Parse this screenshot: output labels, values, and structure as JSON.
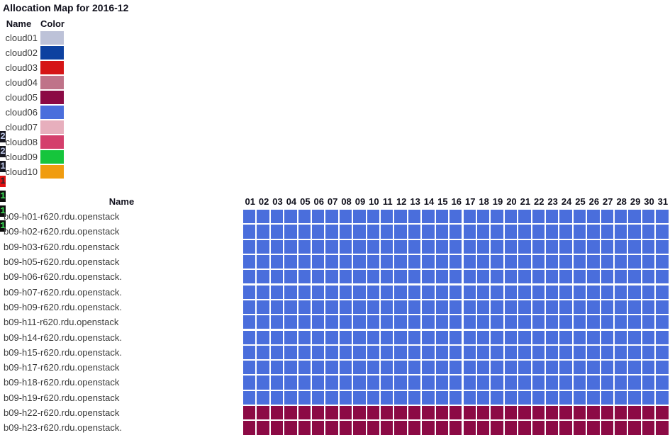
{
  "title": "Allocation Map for 2016-12",
  "legend": {
    "headers": {
      "name": "Name",
      "color": "Color"
    },
    "items": [
      {
        "name": "cloud01",
        "color": "#bdc2d8"
      },
      {
        "name": "cloud02",
        "color": "#0d41a0"
      },
      {
        "name": "cloud03",
        "color": "#d51516"
      },
      {
        "name": "cloud04",
        "color": "#bf7389"
      },
      {
        "name": "cloud05",
        "color": "#8c0a45"
      },
      {
        "name": "cloud06",
        "color": "#4a6edc"
      },
      {
        "name": "cloud07",
        "color": "#e7afbd"
      },
      {
        "name": "cloud08",
        "color": "#d43f6c"
      },
      {
        "name": "cloud09",
        "color": "#16c53c"
      },
      {
        "name": "cloud10",
        "color": "#f09c0f"
      }
    ]
  },
  "edge_artifact": {
    "digits": [
      {
        "text": "2",
        "fg": "#b9c4e4",
        "bg": "#15151f"
      },
      {
        "text": "2",
        "fg": "#b9c4e4",
        "bg": "#15151f"
      },
      {
        "text": "1",
        "fg": "#b9c4e4",
        "bg": "#15151f"
      },
      {
        "text": "1",
        "fg": "#25252f",
        "bg": "#e11010"
      },
      {
        "text": "1",
        "fg": "#3bdf55",
        "bg": "#0e0e0e"
      },
      {
        "text": "1",
        "fg": "#3bdf55",
        "bg": "#0e0e0e"
      },
      {
        "text": "1",
        "fg": "#3bdf55",
        "bg": "#0e0e0e"
      }
    ]
  },
  "allocation_table": {
    "name_header": "Name"
  },
  "chart_data": {
    "type": "heatmap",
    "title": "Allocation Map for 2016-12",
    "x_labels": [
      "01",
      "02",
      "03",
      "04",
      "05",
      "06",
      "07",
      "08",
      "09",
      "10",
      "11",
      "12",
      "13",
      "14",
      "15",
      "16",
      "17",
      "18",
      "19",
      "20",
      "21",
      "22",
      "23",
      "24",
      "25",
      "26",
      "27",
      "28",
      "29",
      "30",
      "31"
    ],
    "y_labels": [
      "b09-h01-r620.rdu.openstack",
      "b09-h02-r620.rdu.openstack",
      "b09-h03-r620.rdu.openstack",
      "b09-h05-r620.rdu.openstack",
      "b09-h06-r620.rdu.openstack.",
      "b09-h07-r620.rdu.openstack.",
      "b09-h09-r620.rdu.openstack.",
      "b09-h11-r620.rdu.openstack",
      "b09-h14-r620.rdu.openstack.",
      "b09-h15-r620.rdu.openstack.",
      "b09-h17-r620.rdu.openstack",
      "b09-h18-r620.rdu.openstack",
      "b09-h19-r620.rdu.openstack",
      "b09-h22-r620.rdu.openstack",
      "b09-h23-r620.rdu.openstack."
    ],
    "rows": [
      {
        "host": "b09-h01-r620.rdu.openstack",
        "cloud": "cloud06",
        "days": "01-31"
      },
      {
        "host": "b09-h02-r620.rdu.openstack",
        "cloud": "cloud06",
        "days": "01-31"
      },
      {
        "host": "b09-h03-r620.rdu.openstack",
        "cloud": "cloud06",
        "days": "01-31"
      },
      {
        "host": "b09-h05-r620.rdu.openstack",
        "cloud": "cloud06",
        "days": "01-31"
      },
      {
        "host": "b09-h06-r620.rdu.openstack.",
        "cloud": "cloud06",
        "days": "01-31"
      },
      {
        "host": "b09-h07-r620.rdu.openstack.",
        "cloud": "cloud06",
        "days": "01-31"
      },
      {
        "host": "b09-h09-r620.rdu.openstack.",
        "cloud": "cloud06",
        "days": "01-31"
      },
      {
        "host": "b09-h11-r620.rdu.openstack",
        "cloud": "cloud06",
        "days": "01-31"
      },
      {
        "host": "b09-h14-r620.rdu.openstack.",
        "cloud": "cloud06",
        "days": "01-31"
      },
      {
        "host": "b09-h15-r620.rdu.openstack.",
        "cloud": "cloud06",
        "days": "01-31"
      },
      {
        "host": "b09-h17-r620.rdu.openstack",
        "cloud": "cloud06",
        "days": "01-31"
      },
      {
        "host": "b09-h18-r620.rdu.openstack",
        "cloud": "cloud06",
        "days": "01-31"
      },
      {
        "host": "b09-h19-r620.rdu.openstack",
        "cloud": "cloud06",
        "days": "01-31"
      },
      {
        "host": "b09-h22-r620.rdu.openstack",
        "cloud": "cloud05",
        "days": "01-31"
      },
      {
        "host": "b09-h23-r620.rdu.openstack.",
        "cloud": "cloud05",
        "days": "01-31"
      }
    ],
    "legend": [
      {
        "label": "cloud01",
        "color": "#bdc2d8"
      },
      {
        "label": "cloud02",
        "color": "#0d41a0"
      },
      {
        "label": "cloud03",
        "color": "#d51516"
      },
      {
        "label": "cloud04",
        "color": "#bf7389"
      },
      {
        "label": "cloud05",
        "color": "#8c0a45"
      },
      {
        "label": "cloud06",
        "color": "#4a6edc"
      },
      {
        "label": "cloud07",
        "color": "#e7afbd"
      },
      {
        "label": "cloud08",
        "color": "#d43f6c"
      },
      {
        "label": "cloud09",
        "color": "#16c53c"
      },
      {
        "label": "cloud10",
        "color": "#f09c0f"
      }
    ],
    "layout": {
      "grid": true,
      "legend_position": "top-left"
    }
  }
}
